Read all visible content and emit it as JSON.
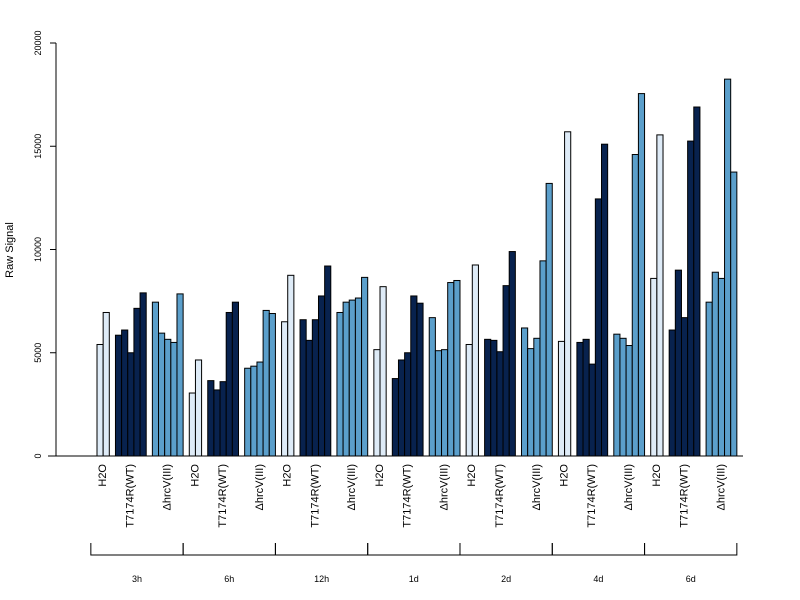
{
  "chart_data": {
    "type": "bar",
    "ylabel": "Raw Signal",
    "ylim": [
      0,
      20000
    ],
    "yticks": [
      0,
      5000,
      10000,
      15000,
      20000
    ],
    "grid": false,
    "legend": "none",
    "treatment_labels": [
      "H2O",
      "T7174R(WT)",
      "ΔhrcV(III)"
    ],
    "colors": {
      "H2O": "#deebf7",
      "T7174R(WT)": "#08224e",
      "ΔhrcV(III)": "#5b9fcb"
    },
    "groups": [
      {
        "time": "3h",
        "H2O": [
          5400,
          6950
        ],
        "T7174R(WT)": [
          5850,
          6100,
          5000,
          7150,
          7900
        ],
        "ΔhrcV(III)": [
          7450,
          5950,
          5650,
          5500,
          7850
        ]
      },
      {
        "time": "6h",
        "H2O": [
          3050,
          4650
        ],
        "T7174R(WT)": [
          3650,
          3200,
          3600,
          6950,
          7450
        ],
        "ΔhrcV(III)": [
          4250,
          4350,
          4550,
          7050,
          6900
        ]
      },
      {
        "time": "12h",
        "H2O": [
          6500,
          8750
        ],
        "T7174R(WT)": [
          6600,
          5600,
          6600,
          7750,
          9200
        ],
        "ΔhrcV(III)": [
          6950,
          7450,
          7550,
          7650,
          8650
        ]
      },
      {
        "time": "1d",
        "H2O": [
          5150,
          8200
        ],
        "T7174R(WT)": [
          3750,
          4650,
          5000,
          7750,
          7400
        ],
        "ΔhrcV(III)": [
          6700,
          5100,
          5150,
          8400,
          8500
        ]
      },
      {
        "time": "2d",
        "H2O": [
          5400,
          9250
        ],
        "T7174R(WT)": [
          5650,
          5600,
          5050,
          8250,
          9900
        ],
        "ΔhrcV(III)": [
          6200,
          5200,
          5700,
          9450,
          13200
        ]
      },
      {
        "time": "4d",
        "H2O": [
          5550,
          15700
        ],
        "T7174R(WT)": [
          5500,
          5650,
          4450,
          12450,
          15100
        ],
        "ΔhrcV(III)": [
          5900,
          5700,
          5350,
          14600,
          17550
        ]
      },
      {
        "time": "6d",
        "H2O": [
          8600,
          15550
        ],
        "T7174R(WT)": [
          6100,
          9000,
          6700,
          15250,
          16900
        ],
        "ΔhrcV(III)": [
          7450,
          8900,
          8600,
          18250,
          13750
        ]
      }
    ]
  }
}
